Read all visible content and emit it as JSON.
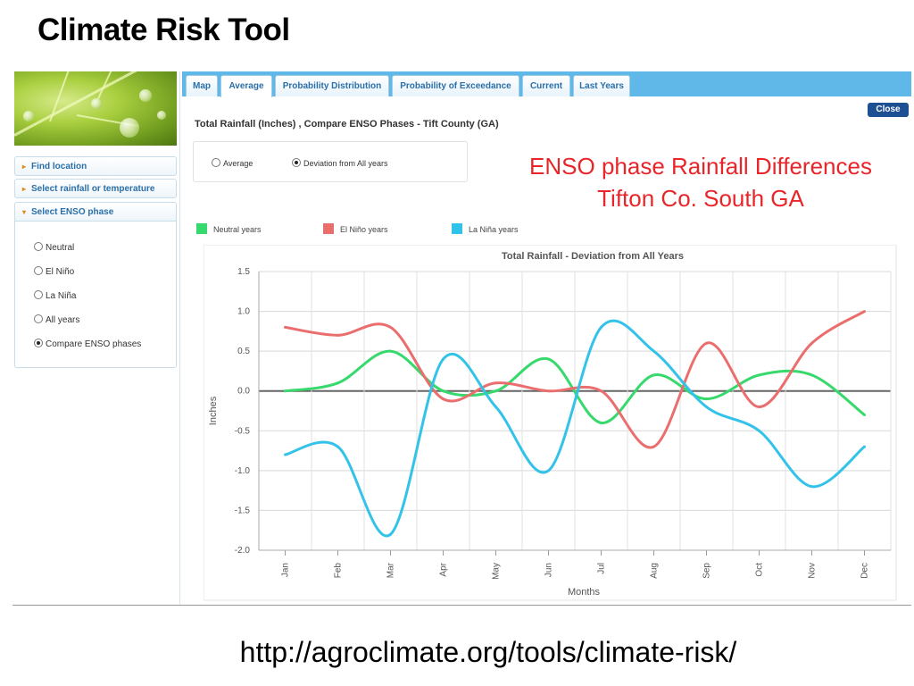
{
  "slide": {
    "title": "Climate Risk Tool",
    "url": "http://agroclimate.org/tools/climate-risk/"
  },
  "sidebar": {
    "items": [
      {
        "label": "Find location",
        "arrow": "▸"
      },
      {
        "label": "Select rainfall or temperature",
        "arrow": "▸"
      },
      {
        "label": "Select ENSO phase",
        "arrow": "▾"
      }
    ],
    "enso_options": [
      {
        "label": "Neutral",
        "checked": false
      },
      {
        "label": "El Niño",
        "checked": false
      },
      {
        "label": "La Niña",
        "checked": false
      },
      {
        "label": "All years",
        "checked": false
      },
      {
        "label": "Compare ENSO phases",
        "checked": true
      }
    ]
  },
  "tabs": [
    {
      "label": "Map",
      "active": false
    },
    {
      "label": "Average",
      "active": true
    },
    {
      "label": "Probability Distribution",
      "active": false
    },
    {
      "label": "Probability of Exceedance",
      "active": false
    },
    {
      "label": "Current",
      "active": false
    },
    {
      "label": "Last Years",
      "active": false
    }
  ],
  "close_label": "Close",
  "chart_heading": "Total Rainfall (Inches) , Compare ENSO Phases - Tift County (GA)",
  "mode_options": [
    {
      "label": "Average",
      "checked": false
    },
    {
      "label": "Deviation from All years",
      "checked": true
    }
  ],
  "overlay": {
    "line1": "ENSO phase Rainfall Differences",
    "line2": "Tifton Co. South GA",
    "color": "#e8262a"
  },
  "icons": {
    "home": "home-icon"
  },
  "chart_data": {
    "type": "line",
    "title": "Total Rainfall - Deviation from All Years",
    "xlabel": "Months",
    "ylabel": "Inches",
    "categories": [
      "Jan",
      "Feb",
      "Mar",
      "Apr",
      "May",
      "Jun",
      "Jul",
      "Aug",
      "Sep",
      "Oct",
      "Nov",
      "Dec"
    ],
    "ylim": [
      -2.0,
      1.5
    ],
    "yticks": [
      "1.5",
      "1.0",
      "0.5",
      "0.0",
      "-0.5",
      "-1.0",
      "-1.5",
      "-2.0"
    ],
    "grid": true,
    "legend_position": "top",
    "series": [
      {
        "name": "Neutral years",
        "color": "#36d96b",
        "values": [
          0.0,
          0.1,
          0.5,
          0.0,
          0.0,
          0.4,
          -0.4,
          0.2,
          -0.1,
          0.2,
          0.2,
          -0.3
        ]
      },
      {
        "name": "El Niño years",
        "color": "#eb6e6e",
        "values": [
          0.8,
          0.7,
          0.8,
          -0.1,
          0.1,
          0.0,
          0.0,
          -0.7,
          0.6,
          -0.2,
          0.6,
          1.0
        ]
      },
      {
        "name": "La Niña years",
        "color": "#33c2e8",
        "values": [
          -0.8,
          -0.7,
          -1.8,
          0.4,
          -0.2,
          -1.0,
          0.8,
          0.5,
          -0.2,
          -0.5,
          -1.2,
          -0.7
        ]
      }
    ]
  }
}
